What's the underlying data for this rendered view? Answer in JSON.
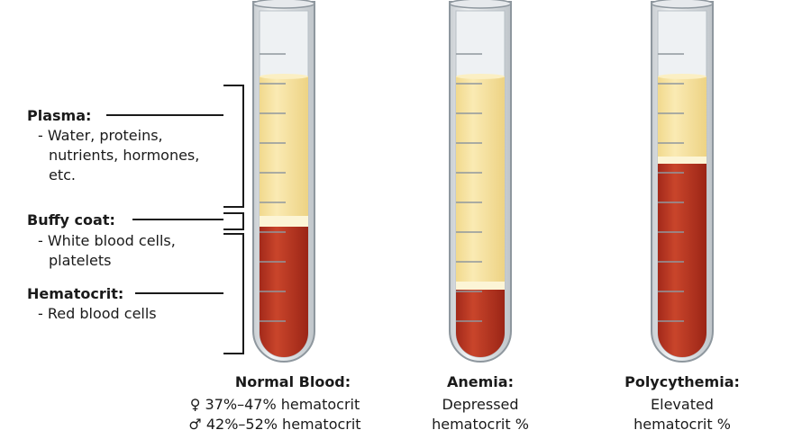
{
  "labels": [
    {
      "title": "Plasma:",
      "items": [
        "- Water, proteins,",
        "nutrients, hormones,",
        "etc."
      ]
    },
    {
      "title": "Buffy coat:",
      "items": [
        "- White blood cells,",
        "platelets"
      ]
    },
    {
      "title": "Hematocrit:",
      "items": [
        "- Red blood cells"
      ]
    }
  ],
  "tubes": [
    {
      "title": "Normal Blood:",
      "lines": [
        "♀ 37%–47% hematocrit",
        "♂ 42%–52% hematocrit"
      ]
    },
    {
      "title": "Anemia:",
      "lines": [
        "Depressed",
        "hematocrit %"
      ]
    },
    {
      "title": "Polycythemia:",
      "lines": [
        "Elevated",
        "hematocrit %"
      ]
    }
  ]
}
